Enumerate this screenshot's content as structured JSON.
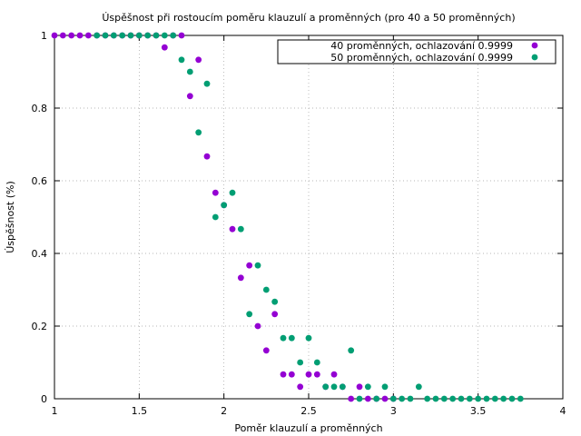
{
  "chart_data": {
    "type": "scatter",
    "title": "Úspěšnost při rostoucím poměru klauzulí a proměnných (pro 40 a 50 proměnných)",
    "xlabel": "Poměr klauzulí a proměnných",
    "ylabel": "Úspěšnost (%)",
    "xlim": [
      1,
      4
    ],
    "ylim": [
      0,
      1
    ],
    "x_ticks": [
      "1",
      "1.5",
      "2",
      "2.5",
      "3",
      "3.5",
      "4"
    ],
    "y_ticks": [
      "0",
      "0.2",
      "0.4",
      "0.6",
      "0.8",
      "1"
    ],
    "grid": true,
    "legend_position": "top-right",
    "series": [
      {
        "name": "40 proměnných, ochlazování 0.9999",
        "color": "#9400d3",
        "points": [
          [
            1.0,
            1.0
          ],
          [
            1.05,
            1.0
          ],
          [
            1.1,
            1.0
          ],
          [
            1.15,
            1.0
          ],
          [
            1.2,
            1.0
          ],
          [
            1.25,
            1.0
          ],
          [
            1.3,
            1.0
          ],
          [
            1.35,
            1.0
          ],
          [
            1.4,
            1.0
          ],
          [
            1.45,
            1.0
          ],
          [
            1.5,
            1.0
          ],
          [
            1.55,
            1.0
          ],
          [
            1.6,
            1.0
          ],
          [
            1.65,
            0.967
          ],
          [
            1.7,
            1.0
          ],
          [
            1.75,
            1.0
          ],
          [
            1.8,
            0.833
          ],
          [
            1.85,
            0.933
          ],
          [
            1.9,
            0.667
          ],
          [
            1.95,
            0.567
          ],
          [
            2.0,
            0.533
          ],
          [
            2.05,
            0.467
          ],
          [
            2.1,
            0.333
          ],
          [
            2.15,
            0.367
          ],
          [
            2.2,
            0.2
          ],
          [
            2.25,
            0.133
          ],
          [
            2.3,
            0.233
          ],
          [
            2.35,
            0.067
          ],
          [
            2.4,
            0.067
          ],
          [
            2.45,
            0.033
          ],
          [
            2.5,
            0.067
          ],
          [
            2.55,
            0.067
          ],
          [
            2.6,
            0.033
          ],
          [
            2.65,
            0.067
          ],
          [
            2.7,
            0.033
          ],
          [
            2.75,
            0.0
          ],
          [
            2.8,
            0.033
          ],
          [
            2.85,
            0.0
          ],
          [
            2.9,
            0.0
          ],
          [
            2.95,
            0.0
          ],
          [
            3.0,
            0.0
          ]
        ]
      },
      {
        "name": "50 proměnných, ochlazování 0.9999",
        "color": "#009e73",
        "points": [
          [
            1.25,
            1.0
          ],
          [
            1.3,
            1.0
          ],
          [
            1.35,
            1.0
          ],
          [
            1.4,
            1.0
          ],
          [
            1.45,
            1.0
          ],
          [
            1.5,
            1.0
          ],
          [
            1.55,
            1.0
          ],
          [
            1.6,
            1.0
          ],
          [
            1.65,
            1.0
          ],
          [
            1.7,
            1.0
          ],
          [
            1.75,
            0.933
          ],
          [
            1.8,
            0.9
          ],
          [
            1.85,
            0.733
          ],
          [
            1.9,
            0.867
          ],
          [
            1.95,
            0.5
          ],
          [
            2.0,
            0.533
          ],
          [
            2.05,
            0.567
          ],
          [
            2.1,
            0.467
          ],
          [
            2.15,
            0.233
          ],
          [
            2.2,
            0.367
          ],
          [
            2.25,
            0.3
          ],
          [
            2.3,
            0.267
          ],
          [
            2.35,
            0.167
          ],
          [
            2.4,
            0.167
          ],
          [
            2.45,
            0.1
          ],
          [
            2.5,
            0.167
          ],
          [
            2.55,
            0.1
          ],
          [
            2.6,
            0.033
          ],
          [
            2.65,
            0.033
          ],
          [
            2.7,
            0.033
          ],
          [
            2.75,
            0.133
          ],
          [
            2.8,
            0.0
          ],
          [
            2.85,
            0.033
          ],
          [
            2.9,
            0.0
          ],
          [
            2.95,
            0.033
          ],
          [
            3.0,
            0.0
          ],
          [
            3.05,
            0.0
          ],
          [
            3.1,
            0.0
          ],
          [
            3.15,
            0.033
          ],
          [
            3.2,
            0.0
          ],
          [
            3.25,
            0.0
          ],
          [
            3.3,
            0.0
          ],
          [
            3.35,
            0.0
          ],
          [
            3.4,
            0.0
          ],
          [
            3.45,
            0.0
          ],
          [
            3.5,
            0.0
          ],
          [
            3.55,
            0.0
          ],
          [
            3.6,
            0.0
          ],
          [
            3.65,
            0.0
          ],
          [
            3.7,
            0.0
          ],
          [
            3.75,
            0.0
          ]
        ]
      }
    ]
  }
}
